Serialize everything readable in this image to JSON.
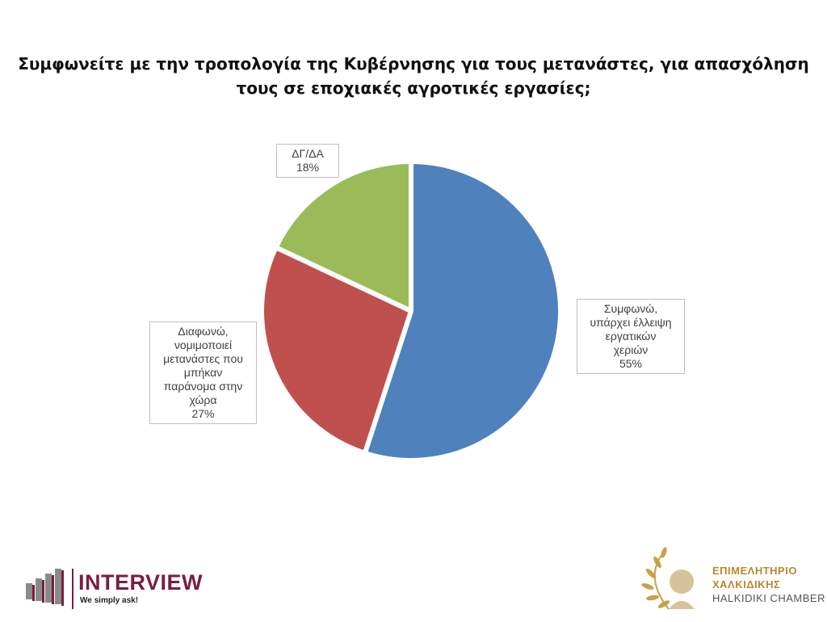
{
  "chart_data": {
    "type": "pie",
    "title_lines": [
      "Συμφωνείτε με την τροπολογία της Κυβέρνησης για τους μετανάστες, για απασχόληση",
      "τους σε εποχιακές αγροτικές εργασίες;"
    ],
    "slices": [
      {
        "label_lines": [
          "Συμφωνώ,",
          "υπάρχει έλλειψη",
          "εργατικών",
          "χεριών"
        ],
        "value": 55,
        "value_label": "55%",
        "color": "#4f81bd"
      },
      {
        "label_lines": [
          "Διαφωνώ,",
          "νομιμοποιεί",
          "μετανάστες που",
          "μπήκαν",
          "παράνομα στην",
          "χώρα"
        ],
        "value": 27,
        "value_label": "27%",
        "color": "#c0504d"
      },
      {
        "label_lines": [
          "ΔΓ/ΔΑ"
        ],
        "value": 18,
        "value_label": "18%",
        "color": "#9bbb59"
      }
    ],
    "legend": "none",
    "start_angle_deg": 0,
    "direction": "clockwise"
  },
  "logos": {
    "interview": {
      "name": "INTERVIEW",
      "tagline": "We simply ask!",
      "color": "#7a1e3e"
    },
    "chamber": {
      "line1": "ΕΠΙΜΕΛΗΤΗΡΙΟ",
      "line2": "ΧΑΛΚΙΔΙΚΗΣ",
      "line3": "HALKIDIKI CHAMBER",
      "color": "#b8892e"
    }
  }
}
